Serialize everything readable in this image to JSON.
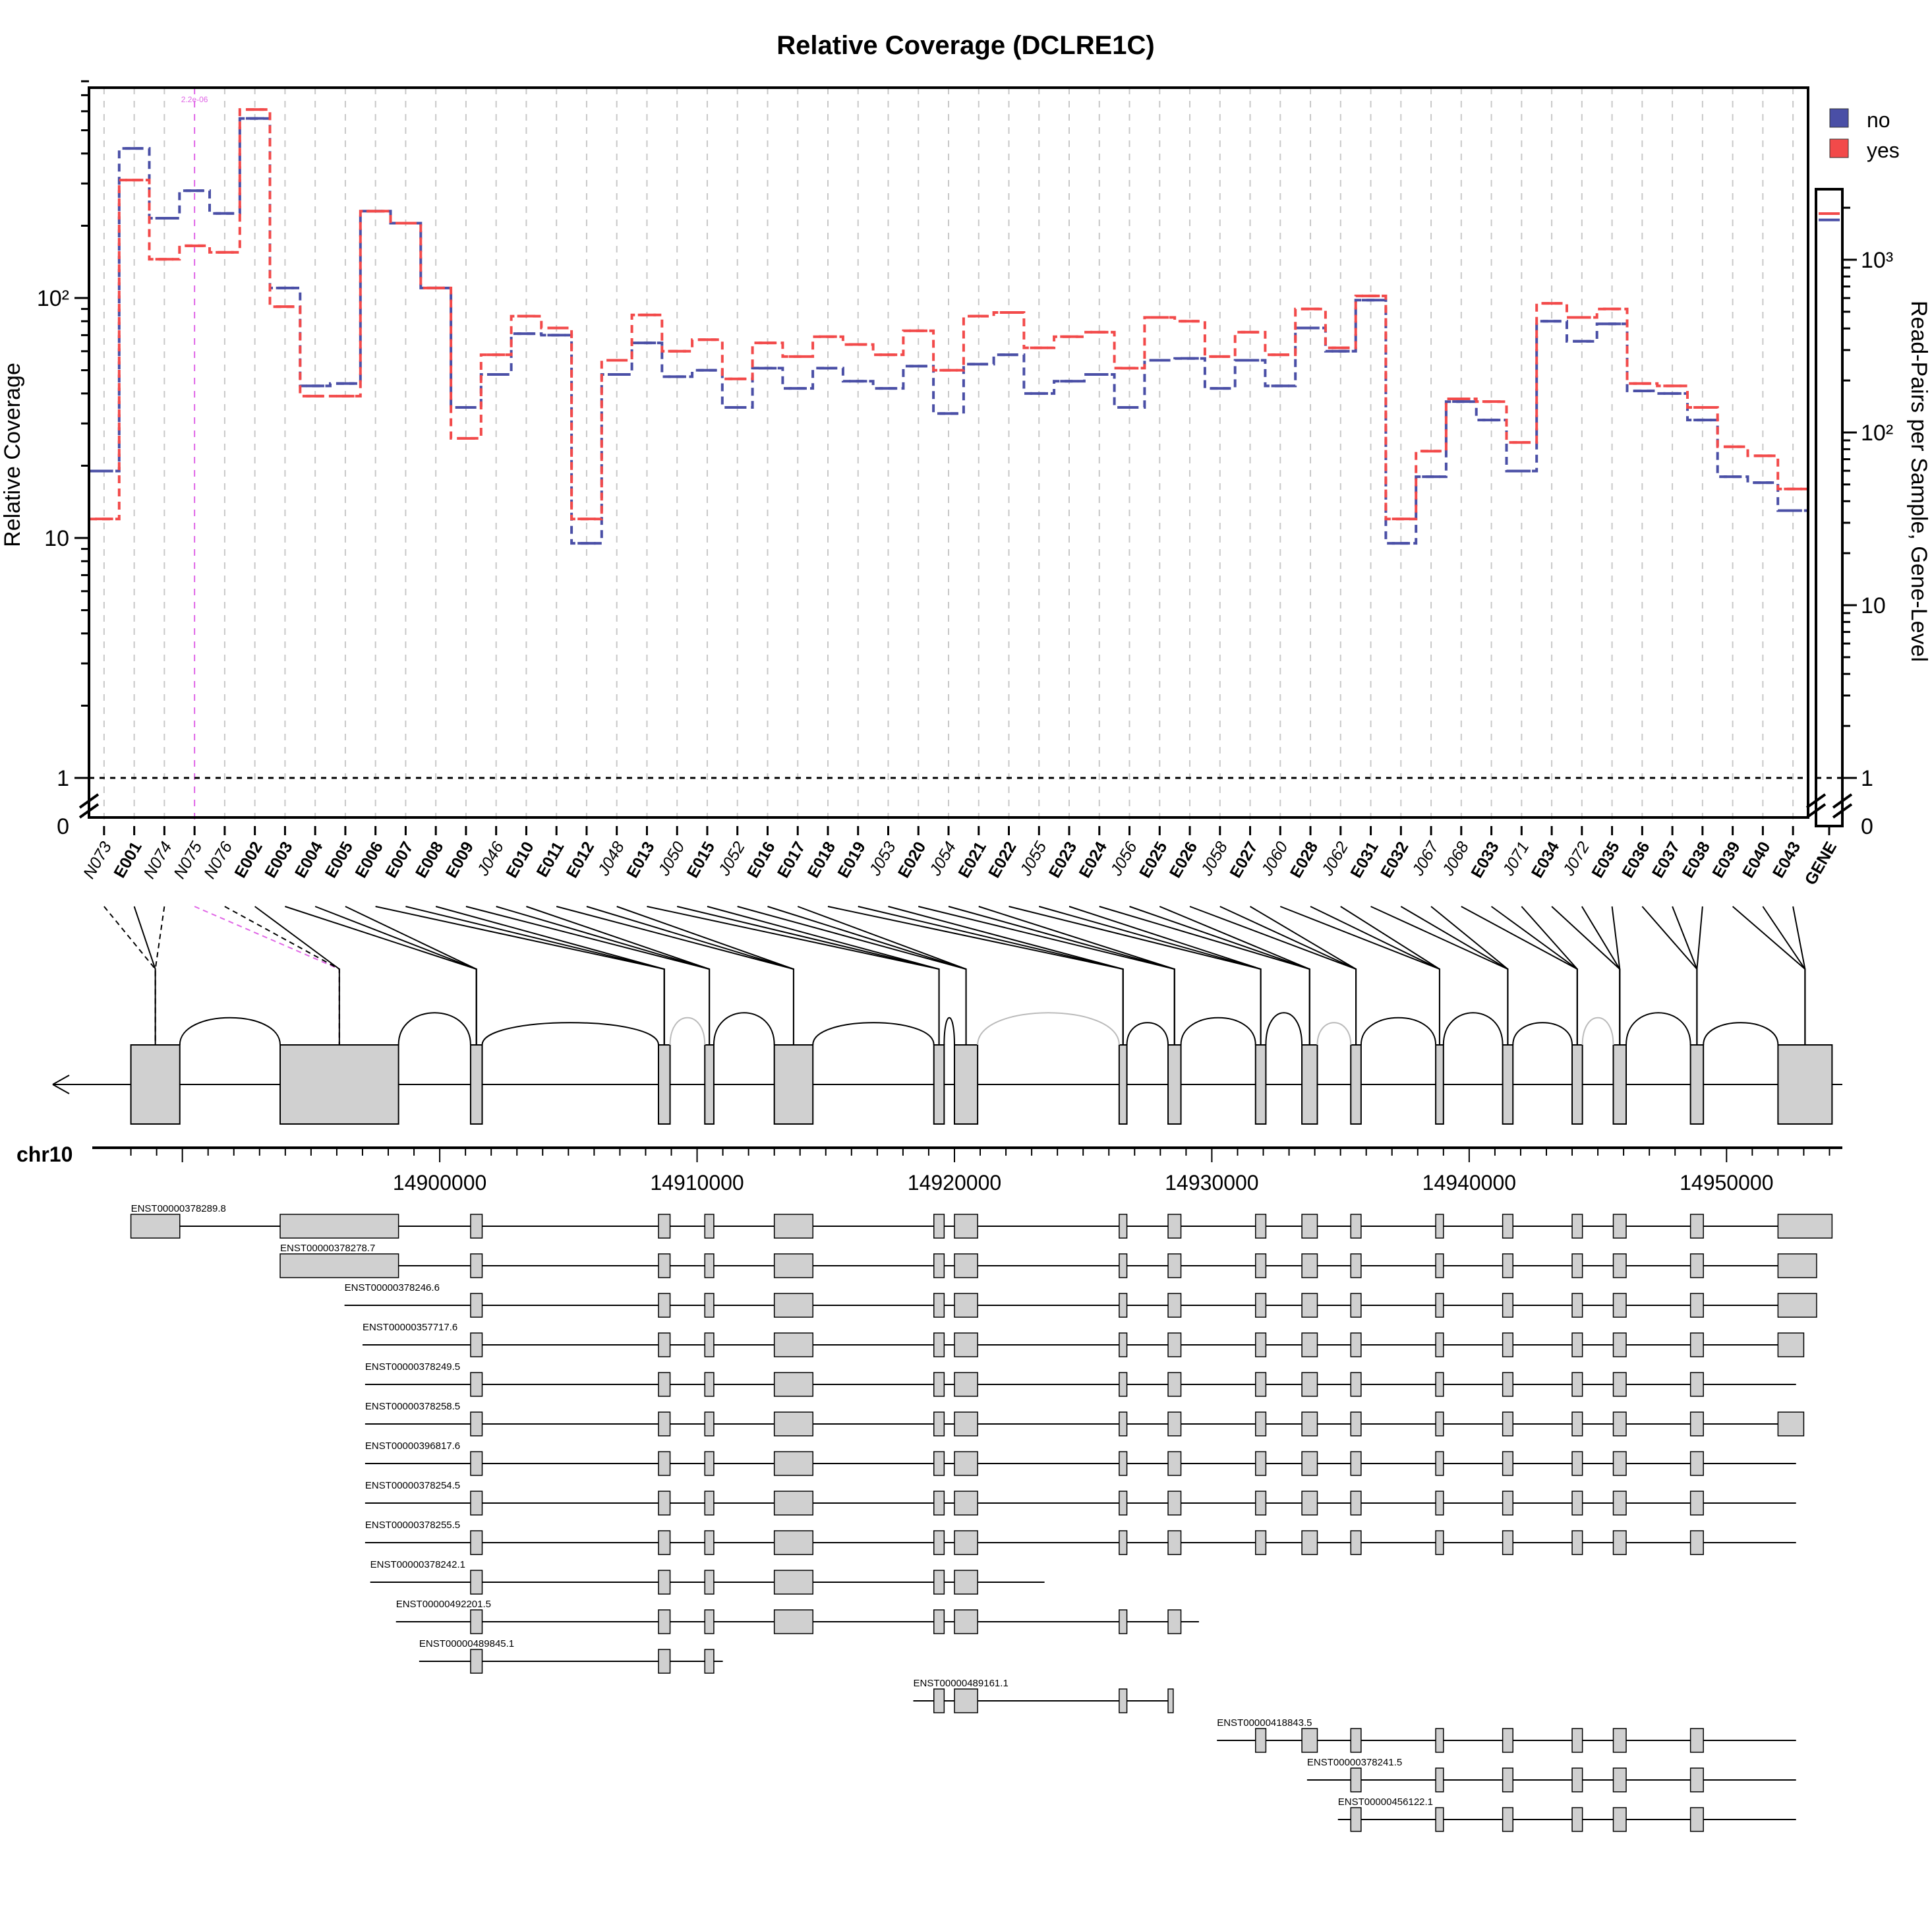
{
  "chart_data": {
    "type": "line",
    "title": "Relative Coverage (DCLRE1C)",
    "ylabel": "Relative Coverage",
    "ylabel_right": "Read-Pairs per Sample, Gene-Level",
    "y_scale": "log",
    "ylim": [
      0.5,
      800
    ],
    "y_ticks": [
      {
        "value": 1,
        "label": "1"
      },
      {
        "value": 10,
        "label": "10"
      },
      {
        "value": 100,
        "label": "10²"
      }
    ],
    "y_zero_label": "0",
    "right_ticks": [
      {
        "value": 1,
        "label": "1"
      },
      {
        "value": 10,
        "label": "10"
      },
      {
        "value": 100,
        "label": "10²"
      },
      {
        "value": 1000,
        "label": "10³"
      }
    ],
    "right_zero_label": "0",
    "legend": {
      "placement": "top-right",
      "entries": [
        {
          "name": "no",
          "color": "#4a4fa6"
        },
        {
          "name": "yes",
          "color": "#f24a4a"
        }
      ]
    },
    "grid": "vertical dashed",
    "reference_line": 1,
    "highlight": {
      "feature": "N075",
      "color": "#e066e6",
      "annotation": "2.2e-06"
    },
    "features": [
      {
        "id": "N073",
        "kind": "novel"
      },
      {
        "id": "E001",
        "kind": "exon"
      },
      {
        "id": "N074",
        "kind": "novel"
      },
      {
        "id": "N075",
        "kind": "novel"
      },
      {
        "id": "N076",
        "kind": "novel"
      },
      {
        "id": "E002",
        "kind": "exon"
      },
      {
        "id": "E003",
        "kind": "exon"
      },
      {
        "id": "E004",
        "kind": "exon"
      },
      {
        "id": "E005",
        "kind": "exon"
      },
      {
        "id": "E006",
        "kind": "exon"
      },
      {
        "id": "E007",
        "kind": "exon"
      },
      {
        "id": "E008",
        "kind": "exon"
      },
      {
        "id": "E009",
        "kind": "exon"
      },
      {
        "id": "J046",
        "kind": "junction"
      },
      {
        "id": "E010",
        "kind": "exon"
      },
      {
        "id": "E011",
        "kind": "exon"
      },
      {
        "id": "E012",
        "kind": "exon"
      },
      {
        "id": "J048",
        "kind": "junction"
      },
      {
        "id": "E013",
        "kind": "exon"
      },
      {
        "id": "J050",
        "kind": "junction"
      },
      {
        "id": "E015",
        "kind": "exon"
      },
      {
        "id": "J052",
        "kind": "junction"
      },
      {
        "id": "E016",
        "kind": "exon"
      },
      {
        "id": "E017",
        "kind": "exon"
      },
      {
        "id": "E018",
        "kind": "exon"
      },
      {
        "id": "E019",
        "kind": "exon"
      },
      {
        "id": "J053",
        "kind": "junction"
      },
      {
        "id": "E020",
        "kind": "exon"
      },
      {
        "id": "J054",
        "kind": "junction"
      },
      {
        "id": "E021",
        "kind": "exon"
      },
      {
        "id": "E022",
        "kind": "exon"
      },
      {
        "id": "J055",
        "kind": "junction"
      },
      {
        "id": "E023",
        "kind": "exon"
      },
      {
        "id": "E024",
        "kind": "exon"
      },
      {
        "id": "J056",
        "kind": "junction"
      },
      {
        "id": "E025",
        "kind": "exon"
      },
      {
        "id": "E026",
        "kind": "exon"
      },
      {
        "id": "J058",
        "kind": "junction"
      },
      {
        "id": "E027",
        "kind": "exon"
      },
      {
        "id": "J060",
        "kind": "junction"
      },
      {
        "id": "E028",
        "kind": "exon"
      },
      {
        "id": "J062",
        "kind": "junction"
      },
      {
        "id": "E031",
        "kind": "exon"
      },
      {
        "id": "E032",
        "kind": "exon"
      },
      {
        "id": "J067",
        "kind": "junction"
      },
      {
        "id": "J068",
        "kind": "junction"
      },
      {
        "id": "E033",
        "kind": "exon"
      },
      {
        "id": "J071",
        "kind": "junction"
      },
      {
        "id": "E034",
        "kind": "exon"
      },
      {
        "id": "J072",
        "kind": "junction"
      },
      {
        "id": "E035",
        "kind": "exon"
      },
      {
        "id": "E036",
        "kind": "exon"
      },
      {
        "id": "E037",
        "kind": "exon"
      },
      {
        "id": "E038",
        "kind": "exon"
      },
      {
        "id": "E039",
        "kind": "exon"
      },
      {
        "id": "E040",
        "kind": "exon"
      },
      {
        "id": "E043",
        "kind": "exon"
      },
      {
        "id": "GENE",
        "kind": "gene"
      }
    ],
    "series": [
      {
        "name": "no",
        "values": [
          19,
          420,
          215,
          280,
          225,
          560,
          110,
          43,
          44,
          230,
          205,
          110,
          35,
          48,
          71,
          70,
          9.5,
          48,
          65,
          47,
          50,
          35,
          51,
          42,
          51,
          45,
          42,
          52,
          33,
          53,
          58,
          40,
          45,
          48,
          35,
          55,
          56,
          42,
          55,
          43,
          75,
          60,
          98,
          9.5,
          18,
          37,
          31,
          19,
          80,
          66,
          78,
          41,
          40,
          31,
          18,
          17,
          13,
          1700
        ]
      },
      {
        "name": "yes",
        "values": [
          12,
          310,
          145,
          165,
          155,
          610,
          92,
          39,
          39,
          230,
          205,
          110,
          26,
          58,
          84,
          75,
          12,
          55,
          85,
          60,
          67,
          46,
          65,
          57,
          69,
          64,
          58,
          73,
          50,
          84,
          87,
          62,
          69,
          72,
          51,
          83,
          80,
          57,
          72,
          58,
          90,
          62,
          102,
          12,
          23,
          38,
          37,
          25,
          95,
          83,
          90,
          44,
          43,
          35,
          24,
          22,
          16,
          1850
        ]
      }
    ],
    "genome": {
      "chrom": "chr10",
      "range": [
        14886500,
        14954500
      ],
      "ticks": [
        "14900000",
        "14910000",
        "14920000",
        "14930000",
        "14940000",
        "14950000"
      ]
    },
    "transcripts": [
      "ENST00000378289.8",
      "ENST00000378278.7",
      "ENST00000378246.6",
      "ENST00000357717.6",
      "ENST00000378249.5",
      "ENST00000378258.5",
      "ENST00000396817.6",
      "ENST00000378254.5",
      "ENST00000378255.5",
      "ENST00000378242.1",
      "ENST00000492201.5",
      "ENST00000489845.1",
      "ENST00000489161.1",
      "ENST00000418843.5",
      "ENST00000378241.5",
      "ENST00000456122.1"
    ]
  }
}
